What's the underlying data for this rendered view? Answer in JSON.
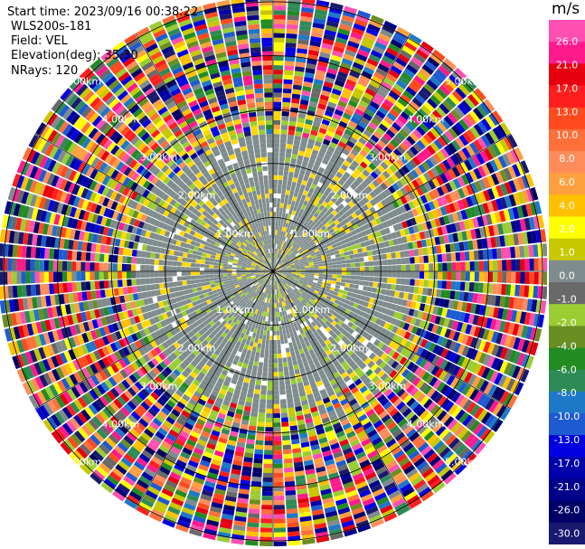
{
  "info": {
    "start_time": "Start time: 2023/09/16 00:38:22",
    "instrument": "WLS200s-181",
    "field": "Field: VEL",
    "elevation": "Elevation(deg): 35.30",
    "nrays": "NRays: 120"
  },
  "colorbar": {
    "unit": "m/s",
    "ticks": [
      "26.0",
      "21.0",
      "17.0",
      "13.0",
      "10.0",
      "8.0",
      "6.0",
      "4.0",
      "2.0",
      "1.0",
      "0.0",
      "-1.0",
      "-2.0",
      "-4.0",
      "-6.0",
      "-8.0",
      "-10.0",
      "-13.0",
      "-17.0",
      "-21.0",
      "-26.0",
      "-30.0"
    ],
    "colors": [
      "#ff4fb0",
      "#ff1a8c",
      "#e6000f",
      "#ff1e1e",
      "#ff4a1e",
      "#ff6f3a",
      "#ff8c5a",
      "#ffa040",
      "#ffc000",
      "#ffff00",
      "#c8c800",
      "#7f8c8d",
      "#696969",
      "#9acd32",
      "#6b8e23",
      "#228b22",
      "#2e8b57",
      "#1e78c8",
      "#1e5ad2",
      "#0000e0",
      "#0000aa",
      "#00008b",
      "#000066",
      "#191970"
    ]
  },
  "chart_data": {
    "type": "polar-ppi",
    "field": "VEL",
    "units": "m/s",
    "range_ring_labels": [
      "1.00km",
      "2.00km",
      "3.00km",
      "4.00km",
      "5.00km"
    ],
    "range_rings_km": [
      1,
      2,
      3,
      4,
      5
    ],
    "max_range_km": 5.1,
    "nrays": 120,
    "elevation_deg": 35.3,
    "color_scale_ms": [
      26.0,
      21.0,
      17.0,
      13.0,
      10.0,
      8.0,
      6.0,
      4.0,
      2.0,
      1.0,
      0.0,
      -1.0,
      -2.0,
      -4.0,
      -6.0,
      -8.0,
      -10.0,
      -13.0,
      -17.0,
      -21.0,
      -26.0,
      -30.0
    ],
    "pattern_description_km": {
      "inner_zone_km": 2.5,
      "near_zero_velocity_region": "center"
    }
  }
}
